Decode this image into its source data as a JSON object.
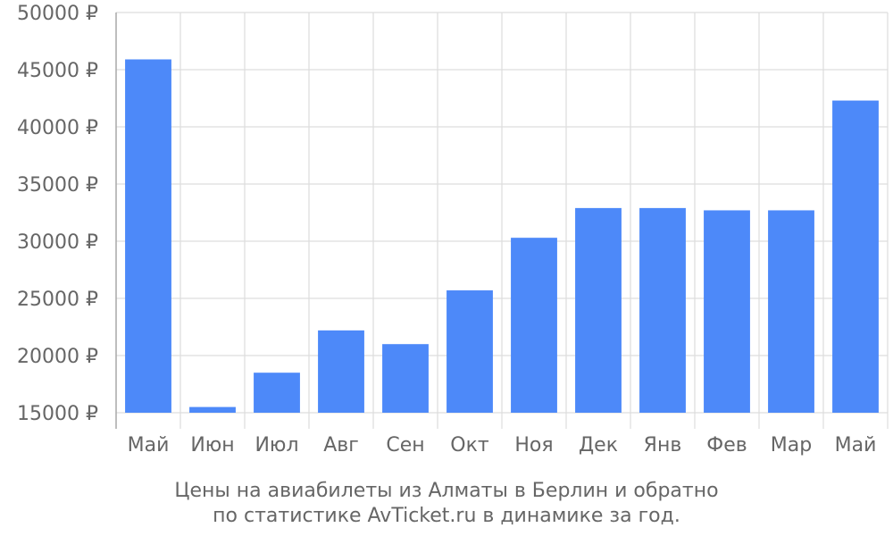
{
  "chart_data": {
    "type": "bar",
    "title": "Цены на авиабилеты из Алматы в Берлин и обратно",
    "subtitle": "по статистике AvTicket.ru в динамике за год.",
    "xlabel": "",
    "ylabel": "",
    "categories": [
      "Май",
      "Июн",
      "Июл",
      "Авг",
      "Сен",
      "Окт",
      "Ноя",
      "Дек",
      "Янв",
      "Фев",
      "Мар",
      "Май"
    ],
    "values": [
      45900,
      15500,
      18500,
      22200,
      21000,
      25700,
      30300,
      32900,
      32900,
      32700,
      32700,
      42300
    ],
    "ylim": [
      15000,
      50000
    ],
    "y_ticks": [
      15000,
      20000,
      25000,
      30000,
      35000,
      40000,
      45000,
      50000
    ],
    "y_tick_labels": [
      "15000 ₽",
      "20000 ₽",
      "25000 ₽",
      "30000 ₽",
      "35000 ₽",
      "40000 ₽",
      "45000 ₽",
      "50000 ₽"
    ],
    "grid": true,
    "bar_color": "#4d89f9",
    "grid_color": "#dddddd",
    "axis_color": "#aaaaaa",
    "text_color": "#666666"
  }
}
